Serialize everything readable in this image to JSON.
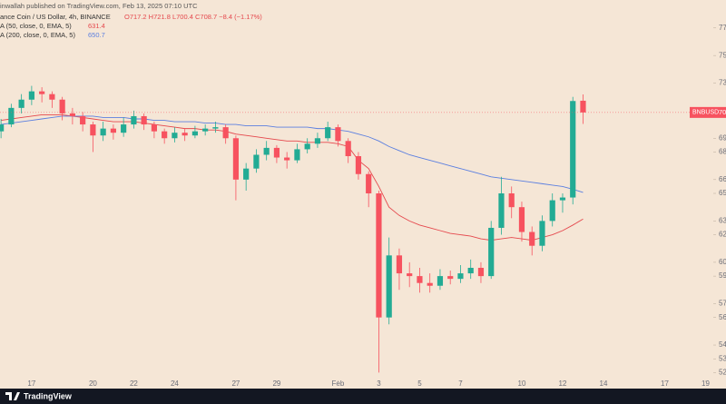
{
  "chart_data": {
    "type": "candlestick",
    "publisher": "inwallah published on TradingView.com, Feb 13, 2025 07:10 UTC",
    "title": "ance Coin / US Dollar, 4h, BINANCE",
    "ohlc_text": "O717.2 H721.8 L700.4 C708.7 −8.4 (−1.17%)",
    "symbol": "BNBUSD",
    "brand": "TradingView",
    "up_color": "#22ab94",
    "down_color": "#f7525f",
    "grid": false,
    "x": [
      15.5,
      16,
      16.5,
      17,
      17.5,
      18,
      18.5,
      19,
      19.5,
      20,
      20.5,
      21,
      21.5,
      22,
      22.5,
      23,
      23.5,
      24,
      24.5,
      25,
      25.5,
      26,
      26.5,
      27,
      27.5,
      28,
      28.5,
      29,
      29.5,
      30,
      30.5,
      31,
      31.5,
      32,
      32.5,
      33,
      33.5,
      34,
      34.5,
      35,
      35.5,
      36,
      36.5,
      37,
      37.5,
      38,
      38.5,
      39,
      39.5,
      40,
      40.5,
      41,
      41.5,
      42,
      42.5,
      43,
      43.5,
      44
    ],
    "open": [
      695,
      700,
      712,
      718,
      724,
      722,
      718,
      708,
      706,
      700,
      692,
      697,
      694,
      700,
      706,
      700,
      695,
      690,
      694,
      692,
      695,
      697,
      698,
      690,
      660,
      668,
      678,
      683,
      676,
      674,
      682,
      686,
      690,
      698,
      688,
      677,
      664,
      650,
      560,
      605,
      592,
      590,
      585,
      583,
      590,
      588,
      592,
      596,
      590,
      625,
      650,
      640,
      622,
      612,
      630,
      645,
      647,
      717.2
    ],
    "high": [
      704,
      715,
      722,
      728,
      727,
      724,
      720,
      712,
      709,
      702,
      702,
      700,
      705,
      710,
      708,
      702,
      697,
      698,
      697,
      699,
      700,
      702,
      700,
      692,
      672,
      682,
      688,
      685,
      680,
      686,
      690,
      694,
      702,
      700,
      690,
      680,
      666,
      652,
      618,
      610,
      600,
      596,
      592,
      595,
      594,
      598,
      602,
      600,
      630,
      662,
      655,
      644,
      626,
      634,
      650,
      650,
      720,
      721.8
    ],
    "low": [
      690,
      698,
      708,
      714,
      716,
      712,
      703,
      700,
      695,
      680,
      688,
      689,
      691,
      697,
      696,
      690,
      686,
      687,
      688,
      690,
      692,
      694,
      686,
      645,
      652,
      665,
      674,
      672,
      668,
      672,
      679,
      683,
      688,
      684,
      672,
      660,
      640,
      520,
      555,
      580,
      582,
      578,
      578,
      580,
      584,
      585,
      588,
      585,
      588,
      620,
      632,
      615,
      605,
      608,
      626,
      636,
      642,
      700.4
    ],
    "close": [
      700,
      712,
      718,
      724,
      722,
      718,
      708,
      706,
      700,
      692,
      697,
      694,
      700,
      706,
      700,
      695,
      690,
      694,
      692,
      695,
      697,
      698,
      690,
      660,
      668,
      678,
      683,
      676,
      674,
      682,
      686,
      690,
      698,
      688,
      677,
      664,
      650,
      560,
      605,
      592,
      590,
      585,
      583,
      590,
      588,
      592,
      596,
      590,
      625,
      650,
      640,
      622,
      612,
      630,
      645,
      647,
      717,
      708.7
    ],
    "series": [
      {
        "name": "A (50, close, 0, EMA, 5)",
        "color": "#e5484d",
        "values": [
          703,
          704,
          705,
          706,
          707,
          707,
          707,
          706,
          705,
          704,
          703,
          702,
          702,
          702,
          701,
          700,
          699,
          698,
          697,
          697,
          696,
          696,
          695,
          693,
          692,
          691,
          690,
          689,
          688,
          688,
          687,
          687,
          687,
          686,
          684,
          674,
          668,
          655,
          640,
          634,
          630,
          627,
          625,
          623,
          621,
          620,
          619,
          617,
          616,
          617,
          618,
          617,
          616,
          618,
          620,
          623,
          627,
          631.4
        ]
      },
      {
        "name": "A (200, close, 0, EMA, 5)",
        "color": "#5b7fe0",
        "values": [
          700,
          701,
          702,
          703,
          704,
          705,
          706,
          706,
          706,
          706,
          705,
          705,
          705,
          704,
          704,
          703,
          703,
          702,
          702,
          702,
          701,
          701,
          700,
          700,
          699,
          699,
          699,
          698,
          698,
          698,
          698,
          697,
          697,
          696,
          695,
          693,
          691,
          688,
          684,
          681,
          678,
          676,
          674,
          672,
          670,
          668,
          666,
          664,
          662,
          661,
          660,
          659,
          658,
          657,
          656,
          655,
          653,
          650.7
        ]
      }
    ],
    "xlim": [
      15.45,
      51.0
    ],
    "ylim": [
      515,
      785
    ],
    "xticks": [
      17,
      20,
      22,
      24,
      27,
      29,
      {
        "value": 32,
        "label": "Feb"
      },
      {
        "value": 34,
        "label": "3"
      },
      {
        "value": 36,
        "label": "5"
      },
      {
        "value": 38,
        "label": "7"
      },
      {
        "value": 41,
        "label": "10"
      },
      {
        "value": 43,
        "label": "12"
      },
      {
        "value": 45,
        "label": "14"
      },
      {
        "value": 48,
        "label": "17"
      },
      {
        "value": 50,
        "label": "19"
      }
    ],
    "yticks": [
      770,
      750,
      730,
      690,
      680,
      660,
      650,
      630,
      620,
      600,
      590,
      570,
      560,
      540,
      530,
      520
    ]
  }
}
